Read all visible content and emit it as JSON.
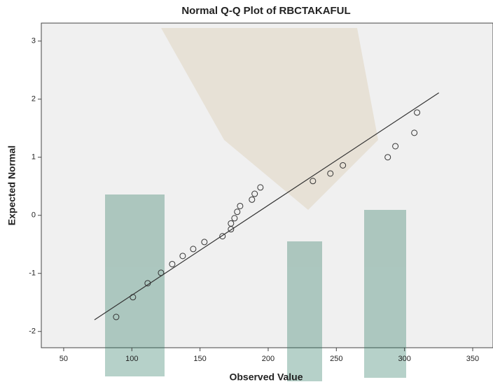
{
  "chart_data": {
    "type": "scatter",
    "title": "Normal Q-Q Plot of RBCTAKAFUL",
    "x_label": "Observed Value",
    "y_label": "Expected Normal",
    "x": [
      88.5,
      100.8,
      111.6,
      121.4,
      129.6,
      137.3,
      145.0,
      153.2,
      166.5,
      172.7,
      172.7,
      175.3,
      177.3,
      179.4,
      188.1,
      190.1,
      194.3,
      232.8,
      245.6,
      254.8,
      287.7,
      293.3,
      307.2,
      309.2
    ],
    "values": [
      -1.75,
      -1.41,
      -1.17,
      -0.99,
      -0.84,
      -0.7,
      -0.58,
      -0.46,
      -0.36,
      -0.24,
      -0.14,
      -0.05,
      0.06,
      0.16,
      0.27,
      0.37,
      0.48,
      0.59,
      0.72,
      0.86,
      1.0,
      1.19,
      1.42,
      1.77
    ],
    "reference_line": {
      "x": [
        72.6,
        325.2
      ],
      "y": [
        -1.8,
        2.11
      ]
    },
    "xlim": [
      33.6,
      364.9
    ],
    "ylim": [
      -2.28,
      3.31
    ],
    "xticks": [
      50,
      100,
      150,
      200,
      250,
      300,
      350
    ],
    "yticks": [
      -2,
      -1,
      0,
      1,
      2,
      3
    ],
    "color": "#333333"
  }
}
